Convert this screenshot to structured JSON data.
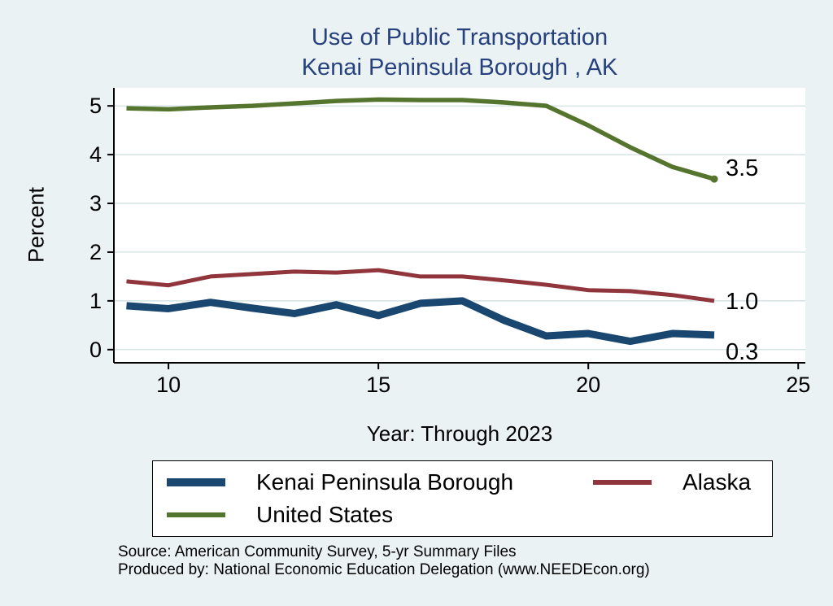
{
  "chart_data": {
    "type": "line",
    "title_line1": "Use of Public Transportation",
    "title_line2": "Kenai Peninsula Borough , AK",
    "ylabel": "Percent",
    "xlabel": "Year: Through 2023",
    "x": [
      9,
      10,
      11,
      12,
      13,
      14,
      15,
      16,
      17,
      18,
      19,
      20,
      21,
      22,
      23
    ],
    "x_ticks": [
      10,
      15,
      20,
      25
    ],
    "y_ticks": [
      0,
      1,
      2,
      3,
      4,
      5
    ],
    "xlim": [
      8.7,
      25.17
    ],
    "ylim": [
      -0.27,
      5.37
    ],
    "grid": "horizontal",
    "legend_position": "bottom",
    "series": [
      {
        "name": "Kenai Peninsula Borough",
        "color": "#1A476F",
        "line_width": 9,
        "end_label": "0.3",
        "values": [
          0.9,
          0.84,
          0.97,
          0.85,
          0.74,
          0.92,
          0.7,
          0.95,
          1.0,
          0.6,
          0.28,
          0.33,
          0.17,
          0.33,
          0.3
        ]
      },
      {
        "name": "Alaska",
        "color": "#90353B",
        "line_width": 5,
        "end_label": "1.0",
        "values": [
          1.4,
          1.32,
          1.5,
          1.55,
          1.6,
          1.58,
          1.63,
          1.5,
          1.5,
          1.42,
          1.33,
          1.22,
          1.2,
          1.12,
          1.0
        ]
      },
      {
        "name": "United States",
        "color": "#55752F",
        "line_width": 5.5,
        "end_label": "3.5",
        "end_dot": true,
        "values": [
          4.95,
          4.93,
          4.97,
          5.0,
          5.05,
          5.1,
          5.13,
          5.12,
          5.12,
          5.07,
          5.0,
          4.6,
          4.15,
          3.75,
          3.5
        ]
      }
    ]
  },
  "footer": {
    "line1": "Source: American Community Survey, 5-yr Summary Files",
    "line2": "Produced by: National Economic Education Delegation (www.NEEDEcon.org)"
  },
  "colors": {
    "background": "#EAF2F3",
    "plot_bg": "#FFFFFF",
    "grid": "#CBDEE3",
    "axis": "#000000",
    "title": "#26417D"
  }
}
